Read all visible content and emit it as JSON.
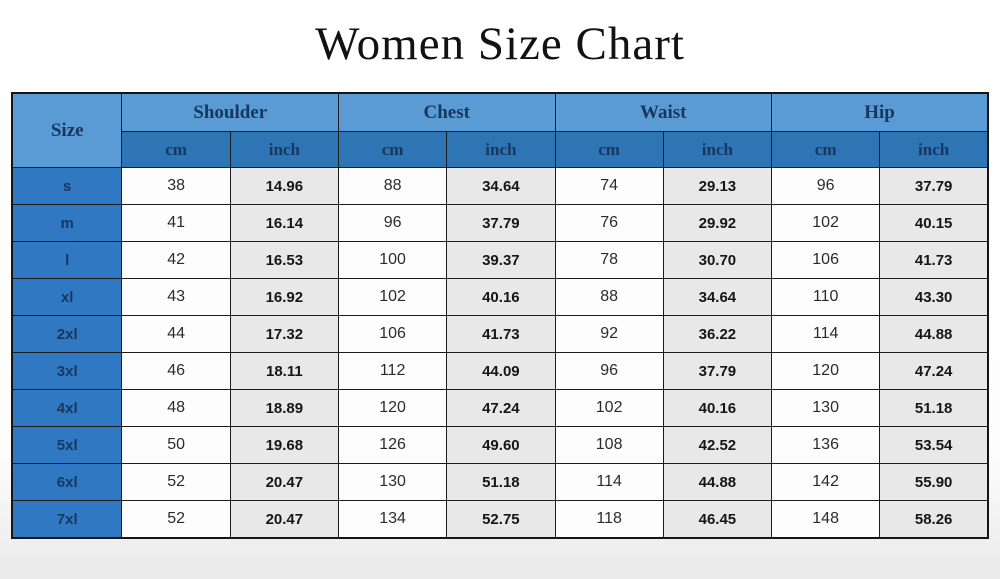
{
  "chart_data": {
    "type": "table",
    "title": "Women Size Chart",
    "size_header": "Size",
    "column_groups": [
      "Shoulder",
      "Chest",
      "Waist",
      "Hip"
    ],
    "unit_labels": [
      "cm",
      "inch"
    ],
    "columns": [
      "Size",
      "Shoulder cm",
      "Shoulder inch",
      "Chest cm",
      "Chest inch",
      "Waist cm",
      "Waist inch",
      "Hip cm",
      "Hip inch"
    ],
    "rows": [
      [
        "s",
        "38",
        "14.96",
        "88",
        "34.64",
        "74",
        "29.13",
        "96",
        "37.79"
      ],
      [
        "m",
        "41",
        "16.14",
        "96",
        "37.79",
        "76",
        "29.92",
        "102",
        "40.15"
      ],
      [
        "l",
        "42",
        "16.53",
        "100",
        "39.37",
        "78",
        "30.70",
        "106",
        "41.73"
      ],
      [
        "xl",
        "43",
        "16.92",
        "102",
        "40.16",
        "88",
        "34.64",
        "110",
        "43.30"
      ],
      [
        "2xl",
        "44",
        "17.32",
        "106",
        "41.73",
        "92",
        "36.22",
        "114",
        "44.88"
      ],
      [
        "3xl",
        "46",
        "18.11",
        "112",
        "44.09",
        "96",
        "37.79",
        "120",
        "47.24"
      ],
      [
        "4xl",
        "48",
        "18.89",
        "120",
        "47.24",
        "102",
        "40.16",
        "130",
        "51.18"
      ],
      [
        "5xl",
        "50",
        "19.68",
        "126",
        "49.60",
        "108",
        "42.52",
        "136",
        "53.54"
      ],
      [
        "6xl",
        "52",
        "20.47",
        "130",
        "51.18",
        "114",
        "44.88",
        "142",
        "55.90"
      ],
      [
        "7xl",
        "52",
        "20.47",
        "134",
        "52.75",
        "118",
        "46.45",
        "148",
        "58.26"
      ]
    ],
    "colors": {
      "group_header_bg": "#5b9bd5",
      "unit_header_bg": "#2e75b6",
      "size_cell_bg": "#3078c2",
      "header_text": "#17375e",
      "inch_cell_bg": "#e8e8e8",
      "cm_cell_bg": "#fdfdfd",
      "border": "#1c1c1c"
    }
  }
}
